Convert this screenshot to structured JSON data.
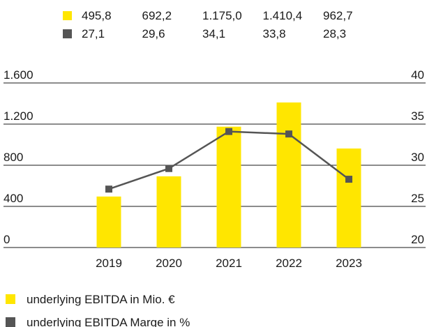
{
  "chart_data": {
    "type": "bar",
    "categories": [
      "2019",
      "2020",
      "2021",
      "2022",
      "2023"
    ],
    "series": [
      {
        "name": "underlying EBITDA in Mio. €",
        "type": "bar",
        "color": "#ffe600",
        "values": [
          495.8,
          692.2,
          1175.0,
          1410.4,
          962.7
        ],
        "value_labels": [
          "495,8",
          "692,2",
          "1.175,0",
          "1.410,4",
          "962,7"
        ]
      },
      {
        "name": "underlying EBITDA Marge in %",
        "type": "line",
        "axis": "y2",
        "color": "#555555",
        "values": [
          27.1,
          29.6,
          34.1,
          33.8,
          28.3
        ],
        "value_labels": [
          "27,1",
          "29,6",
          "34,1",
          "33,8",
          "28,3"
        ]
      }
    ],
    "ylim": [
      0,
      1600
    ],
    "yticks": [
      0,
      400,
      800,
      {
        "value": 1200,
        "label": "1.200"
      },
      {
        "value": 1600,
        "label": "1.600"
      }
    ],
    "y2lim": [
      20,
      40
    ],
    "y2ticks": [
      20,
      25,
      30,
      35,
      40
    ],
    "grid": true,
    "legend": "bottom"
  }
}
